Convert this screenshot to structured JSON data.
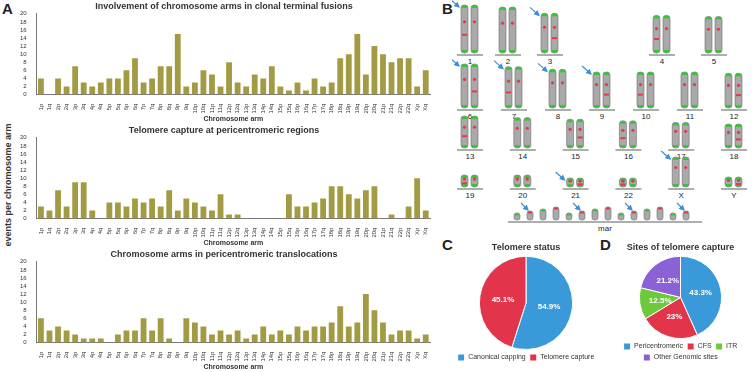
{
  "figure": {
    "panel_labels": [
      "A",
      "B",
      "C",
      "D"
    ],
    "shared_y_label": "events per chromosome arm"
  },
  "karyotype": {
    "chromosomes": [
      "1",
      "2",
      "3",
      "4",
      "5",
      "6",
      "7",
      "8",
      "9",
      "10",
      "11",
      "12",
      "13",
      "14",
      "15",
      "16",
      "17",
      "18",
      "19",
      "20",
      "21",
      "22",
      "X",
      "Y"
    ],
    "marker_label": "mar"
  },
  "chart_data": [
    {
      "type": "bar",
      "title": "Involvement of chromosome arms in clonal terminal fusions",
      "x_label": "Chromosome arm",
      "categories": [
        "1p",
        "1q",
        "2p",
        "2q",
        "3p",
        "3q",
        "4p",
        "4q",
        "5p",
        "5q",
        "6p",
        "6q",
        "7p",
        "7q",
        "8p",
        "8q",
        "9p",
        "9q",
        "10p",
        "10q",
        "11p",
        "11q",
        "12p",
        "12q",
        "13p",
        "13q",
        "14p",
        "14q",
        "15p",
        "15q",
        "16p",
        "16q",
        "17p",
        "17q",
        "18p",
        "18q",
        "19p",
        "19q",
        "20p",
        "20q",
        "21p",
        "21q",
        "22p",
        "22q",
        "Xp",
        "Xq"
      ],
      "values": [
        4,
        0,
        4,
        2,
        7,
        3,
        2,
        3,
        4,
        4,
        6,
        9,
        3,
        4,
        7,
        7,
        15,
        2,
        3,
        6,
        5,
        2,
        8,
        3,
        2,
        5,
        4,
        7,
        2,
        1,
        3,
        1,
        4,
        2,
        3,
        9,
        10,
        15,
        5,
        12,
        10,
        8,
        9,
        9,
        2,
        6
      ],
      "color": "#a39b43",
      "ylim": [
        0,
        20
      ],
      "yticks": [
        0,
        2,
        4,
        6,
        8,
        10,
        12,
        14,
        16,
        18,
        20
      ],
      "grid": false
    },
    {
      "type": "bar",
      "title": "Telomere capture at pericentromeric regions",
      "x_label": "Chromosome arm",
      "categories": [
        "1p",
        "1q",
        "2p",
        "2q",
        "3p",
        "3q",
        "4p",
        "4q",
        "5p",
        "5q",
        "6p",
        "6q",
        "7p",
        "7q",
        "8p",
        "8q",
        "9p",
        "9q",
        "10p",
        "10q",
        "11p",
        "11q",
        "12p",
        "12q",
        "13p",
        "13q",
        "14p",
        "14q",
        "15p",
        "15q",
        "16p",
        "16q",
        "17p",
        "17q",
        "18p",
        "18q",
        "19p",
        "19q",
        "20p",
        "20q",
        "21p",
        "21q",
        "22p",
        "22q",
        "Xp",
        "Xq"
      ],
      "values": [
        3,
        2,
        7,
        3,
        9,
        9,
        2,
        0,
        4,
        4,
        3,
        5,
        4,
        5,
        3,
        7,
        2,
        5,
        4,
        3,
        2,
        6,
        1,
        1,
        0,
        0,
        0,
        0,
        0,
        6,
        3,
        3,
        4,
        5,
        8,
        8,
        6,
        5,
        7,
        8,
        0,
        1,
        0,
        3,
        10,
        2
      ],
      "color": "#a39b43",
      "ylim": [
        0,
        20
      ],
      "yticks": [
        0,
        2,
        4,
        6,
        8,
        10,
        12,
        14,
        16,
        18,
        20
      ],
      "grid": false
    },
    {
      "type": "bar",
      "title": "Chromosome arms in pericentromeric translocations",
      "x_label": "Chromosome arm",
      "categories": [
        "1p",
        "1q",
        "2p",
        "2q",
        "3p",
        "3q",
        "4p",
        "4q",
        "5p",
        "5q",
        "6p",
        "6q",
        "7p",
        "7q",
        "8p",
        "8q",
        "9p",
        "9q",
        "10p",
        "10q",
        "11p",
        "11q",
        "12p",
        "12q",
        "13p",
        "13q",
        "14p",
        "14q",
        "15p",
        "15q",
        "16p",
        "16q",
        "17p",
        "17q",
        "18p",
        "18q",
        "19p",
        "19q",
        "20p",
        "20q",
        "21p",
        "21q",
        "22p",
        "22q",
        "Xp",
        "Xq"
      ],
      "values": [
        6,
        3,
        4,
        3,
        2,
        1,
        1,
        1,
        0,
        2,
        3,
        3,
        6,
        3,
        6,
        1,
        0,
        6,
        5,
        4,
        2,
        3,
        2,
        3,
        1,
        2,
        4,
        2,
        3,
        2,
        4,
        3,
        4,
        4,
        5,
        9,
        4,
        5,
        12,
        8,
        5,
        2,
        3,
        3,
        1,
        2
      ],
      "color": "#a39b43",
      "ylim": [
        0,
        20
      ],
      "yticks": [
        0,
        2,
        4,
        6,
        8,
        10,
        12,
        14,
        16,
        18,
        20
      ],
      "grid": false
    },
    {
      "type": "pie",
      "title": "Telomere status",
      "categories": [
        "Canonical capping",
        "Telomere capture"
      ],
      "values": [
        54.9,
        45.1
      ],
      "value_labels": [
        "54.9%",
        "45.1%"
      ],
      "colors": [
        "#3a9ad9",
        "#e2354b"
      ],
      "data_labels": true,
      "legend": "bottom"
    },
    {
      "type": "pie",
      "title": "Sites of telomere capture",
      "categories": [
        "Pericentromeric",
        "CFS",
        "ITR",
        "Other Genomic sites"
      ],
      "values": [
        43.3,
        23,
        12.5,
        21.2
      ],
      "value_labels": [
        "43.3%",
        "23%",
        "12.5%",
        "21.2%"
      ],
      "colors": [
        "#3a9ad9",
        "#e2354b",
        "#6cc93a",
        "#8b62d6"
      ],
      "data_labels": true,
      "legend": "bottom"
    }
  ]
}
